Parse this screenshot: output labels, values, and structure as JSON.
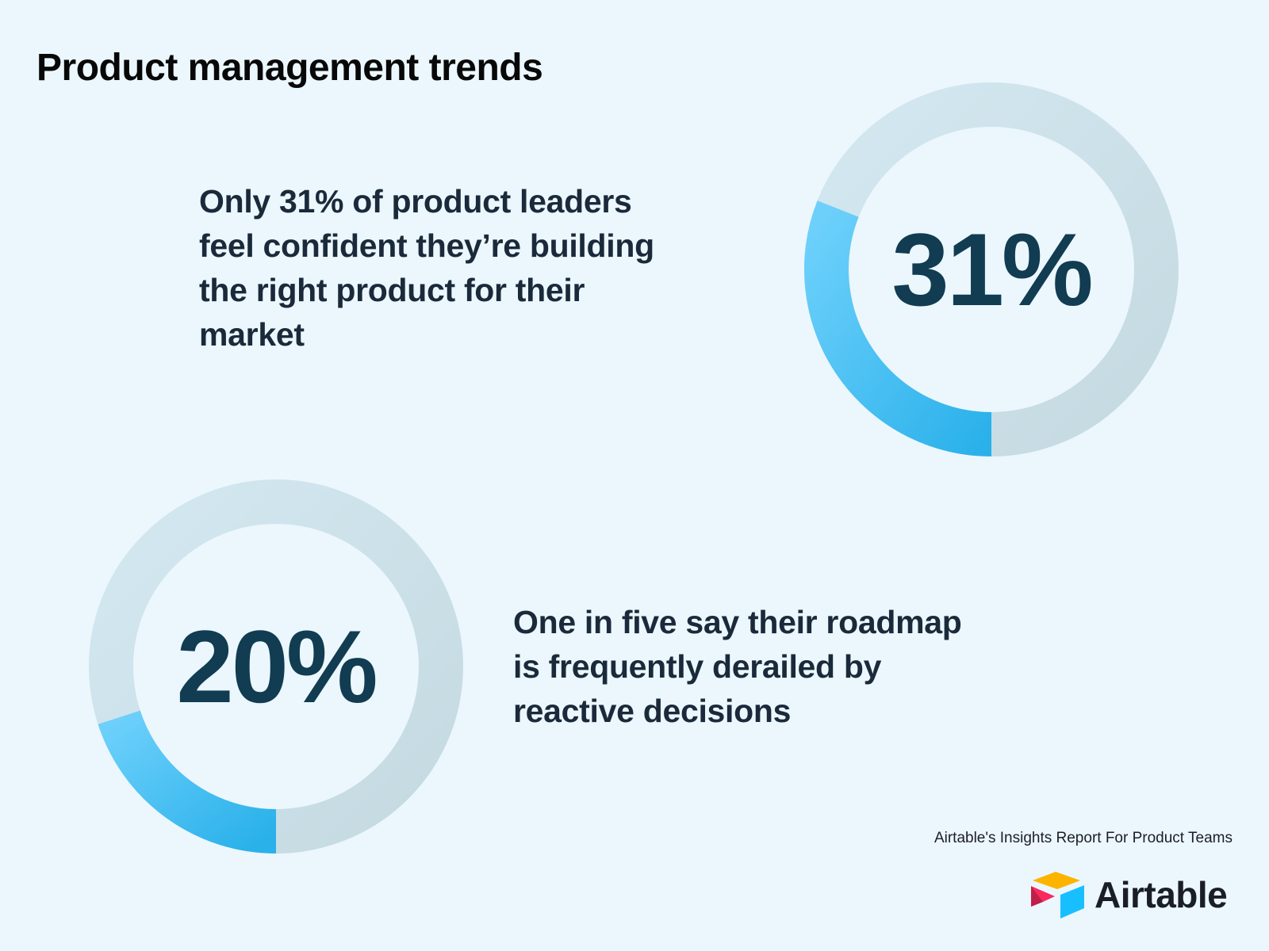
{
  "title": "Product management trends",
  "stats": [
    {
      "lines": [
        "Only 31% of product leaders",
        "feel confident they’re building",
        "the right product for their",
        "market"
      ]
    },
    {
      "lines": [
        "One in five say their roadmap",
        "is frequently derailed by",
        "reactive decisions"
      ]
    }
  ],
  "chart_data": [
    {
      "type": "pie",
      "value": 31,
      "total": 100,
      "center_label": "31%",
      "colors": {
        "filled": "#3ab8ee",
        "remainder": "#cde3ec"
      }
    },
    {
      "type": "pie",
      "value": 20,
      "total": 100,
      "center_label": "20%",
      "colors": {
        "filled": "#3ab8ee",
        "remainder": "#cde3ec"
      }
    }
  ],
  "source": "Airtable's Insights Report For Product Teams",
  "brand": {
    "name": "Airtable",
    "icon": "airtable-logo-icon"
  }
}
